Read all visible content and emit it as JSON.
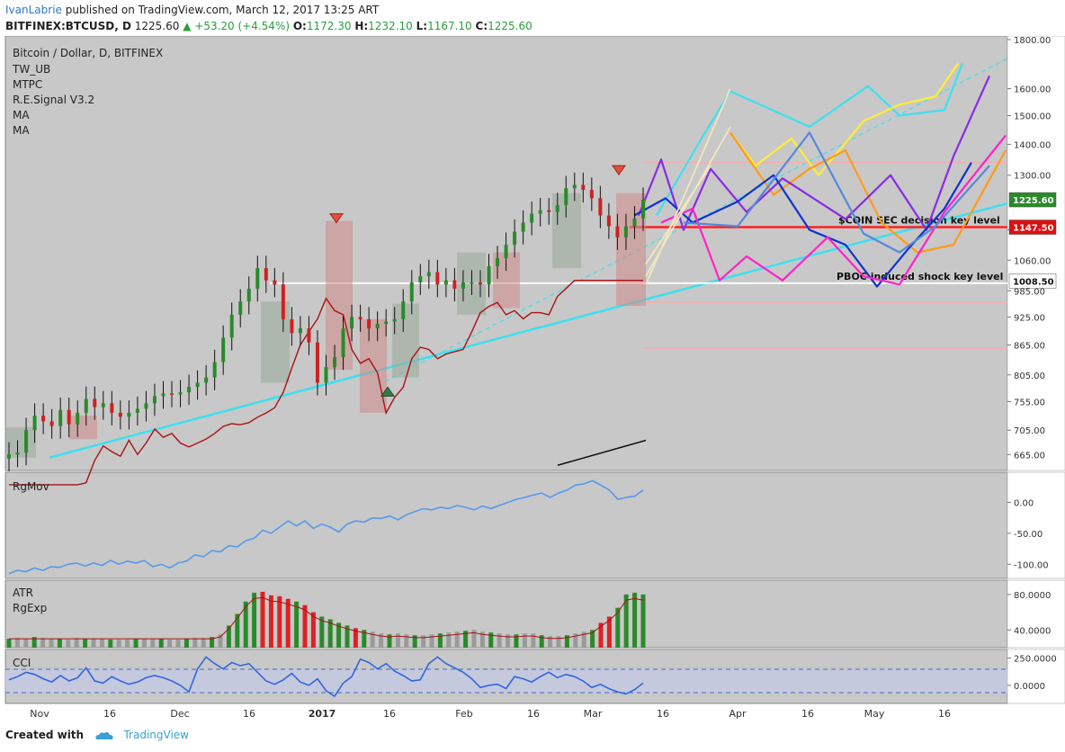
{
  "header": {
    "author": "IvanLabrie",
    "published": "published on TradingView.com, March 12, 2017 13:25 ART",
    "symbol": "BITFINEX:BTCUSD, D",
    "last": "1225.60",
    "change": "▲ +53.20 (+4.54%)",
    "o_label": "O:",
    "o_value": "1172.30",
    "h_label": "H:",
    "h_value": "1232.10",
    "l_label": "L:",
    "l_value": "1167.10",
    "c_label": "C:",
    "c_value": "1225.60"
  },
  "footer": {
    "created_with": "Created with",
    "brand": "TradingView"
  },
  "colors": {
    "background": "#c8c8c8",
    "panel_border": "#888888",
    "up": "#2a8a2a",
    "down": "#cc2222",
    "cyan": "#3ce0f0",
    "yellow": "#ffee33",
    "orange": "#ff9a1a",
    "violet": "#8a2be2",
    "blue": "#1133cc",
    "magenta": "#ff22cc",
    "red_level": "#ff2020",
    "white_level": "#ffffff",
    "rgmov": "#5599ee",
    "cci": "#3366dd",
    "ma": "#aa1111"
  },
  "chart_data": [
    {
      "type": "line",
      "title": "Bitcoin / Dollar, D, BITFINEX",
      "indicators": [
        "TW_UB",
        "MTPC",
        "R.E.Signal V3.2",
        "MA",
        "MA"
      ],
      "y_scale": "log",
      "ylim": [
        640,
        1800
      ],
      "x_labels": [
        "Nov",
        "16",
        "Dec",
        "16",
        "2017",
        "16",
        "Feb",
        "16",
        "Mar",
        "16",
        "Apr",
        "16",
        "May",
        "16"
      ],
      "y_ticks": [
        "1800.00",
        "1600.00",
        "1500.00",
        "1400.00",
        "1300.00",
        "1140.00",
        "1060.00",
        "985.00",
        "925.00",
        "865.00",
        "805.00",
        "755.00",
        "705.00",
        "665.00"
      ],
      "price_tags": [
        {
          "label": "1225.60",
          "value": 1225.6,
          "color": "#2a8a2a"
        },
        {
          "label": "1147.50",
          "value": 1147.5,
          "color": "#dd1111"
        },
        {
          "label": "1008.50",
          "value": 1008.5,
          "color": "#ffffff"
        }
      ],
      "key_levels": [
        {
          "label": "$COIN SEC decision key level",
          "value": 1147.5,
          "color": "#ff2020"
        },
        {
          "label": "PBOC induced shock key level",
          "value": 1003,
          "color": "#ffffff"
        }
      ],
      "series": [
        {
          "values": [
            665,
            668,
            705,
            730,
            720,
            712,
            740,
            715,
            735,
            760,
            745,
            752,
            735,
            728,
            735,
            742,
            752,
            765,
            770,
            768,
            772,
            782,
            790,
            800,
            830,
            880,
            930,
            960,
            990,
            1040,
            1010,
            1000,
            920,
            890,
            900,
            870,
            790,
            820,
            840,
            900,
            925,
            920,
            900,
            910,
            915,
            920,
            960,
            1005,
            1020,
            1030,
            1000,
            1010,
            990,
            1005,
            1005,
            1000,
            1045,
            1065,
            1100,
            1135,
            1160,
            1185,
            1195,
            1190,
            1210,
            1260,
            1270,
            1255,
            1230,
            1180,
            1150,
            1120,
            1150,
            1172,
            1225.6
          ]
        }
      ]
    },
    {
      "type": "line",
      "title": "RgMov",
      "ylim": [
        -120,
        40
      ],
      "y_ticks": [
        "0.00",
        "-50.00",
        "-100.00"
      ],
      "series": [
        {
          "values": [
            -115,
            -110,
            -112,
            -106,
            -110,
            -104,
            -105,
            -100,
            -98,
            -103,
            -98,
            -102,
            -94,
            -100,
            -95,
            -98,
            -94,
            -104,
            -100,
            -106,
            -98,
            -95,
            -85,
            -88,
            -78,
            -80,
            -70,
            -72,
            -62,
            -58,
            -45,
            -50,
            -40,
            -30,
            -38,
            -30,
            -42,
            -35,
            -40,
            -48,
            -35,
            -30,
            -32,
            -25,
            -26,
            -22,
            -28,
            -20,
            -15,
            -10,
            -12,
            -8,
            -10,
            -5,
            -8,
            -12,
            -6,
            -10,
            -5,
            0,
            5,
            8,
            12,
            15,
            8,
            15,
            20,
            28,
            30,
            35,
            28,
            20,
            5,
            8,
            10,
            20
          ]
        }
      ]
    },
    {
      "type": "bar",
      "title": "ATR",
      "subtitle": "RgExp",
      "ylim": [
        20,
        90
      ],
      "y_ticks": [
        "80.0000",
        "40.0000"
      ],
      "series": [
        {
          "values": [
            30,
            31,
            30,
            32,
            31,
            30,
            30,
            29,
            31,
            30,
            30,
            30,
            29,
            29,
            29,
            30,
            30,
            30,
            30,
            29,
            29,
            30,
            31,
            31,
            32,
            35,
            45,
            58,
            72,
            82,
            83,
            79,
            78,
            75,
            72,
            68,
            60,
            55,
            52,
            48,
            45,
            42,
            40,
            38,
            36,
            35,
            36,
            35,
            34,
            34,
            35,
            36,
            37,
            38,
            39,
            40,
            38,
            37,
            36,
            35,
            35,
            36,
            36,
            34,
            33,
            33,
            34,
            36,
            38,
            40,
            48,
            55,
            65,
            80,
            82,
            80
          ]
        }
      ]
    },
    {
      "type": "line",
      "title": "CCI",
      "ylim": [
        -150,
        280
      ],
      "y_ticks": [
        "250.0000",
        "0.0000"
      ],
      "series": [
        {
          "values": [
            50,
            80,
            120,
            100,
            60,
            30,
            90,
            40,
            70,
            160,
            40,
            20,
            80,
            40,
            10,
            30,
            70,
            90,
            70,
            40,
            0,
            -60,
            150,
            260,
            200,
            150,
            210,
            180,
            200,
            120,
            40,
            10,
            50,
            110,
            30,
            0,
            60,
            -50,
            -100,
            20,
            80,
            240,
            210,
            150,
            200,
            130,
            90,
            40,
            50,
            200,
            260,
            200,
            160,
            120,
            60,
            -20,
            0,
            10,
            -30,
            80,
            60,
            30,
            80,
            120,
            70,
            100,
            80,
            40,
            -20,
            10,
            -30,
            -60,
            -80,
            -40,
            20
          ]
        }
      ]
    }
  ]
}
